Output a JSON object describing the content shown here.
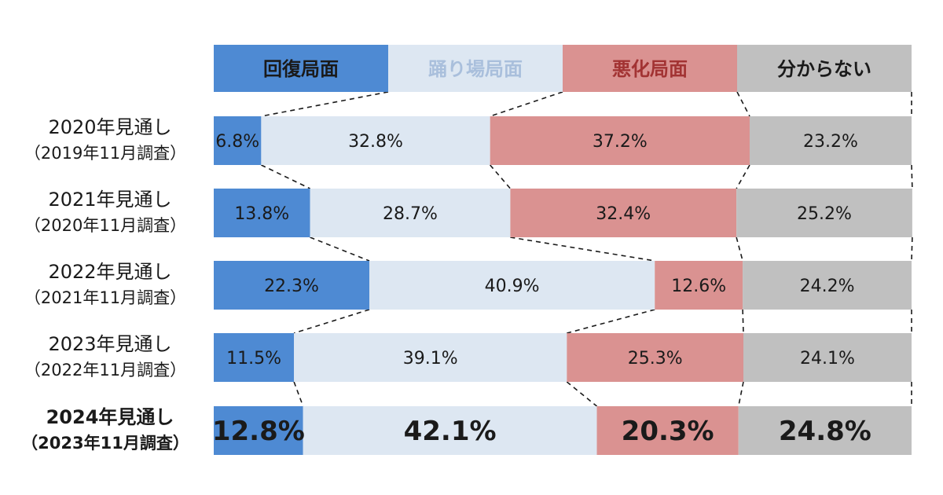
{
  "chart_data": {
    "type": "bar",
    "orientation": "horizontal",
    "stacked": true,
    "normalized": true,
    "legend_position": "top",
    "series": [
      {
        "name": "回復局面",
        "color": "#4e8ad3",
        "label_color": "#1a1a1a",
        "values": [
          6.8,
          13.8,
          22.3,
          11.5,
          12.8
        ]
      },
      {
        "name": "踊り場局面",
        "color": "#dde7f2",
        "label_color": "#a9bfdc",
        "values": [
          32.8,
          28.7,
          40.9,
          39.1,
          42.1
        ]
      },
      {
        "name": "悪化局面",
        "color": "#da9291",
        "label_color": "#a23333",
        "values": [
          37.2,
          32.4,
          12.6,
          25.3,
          20.3
        ]
      },
      {
        "name": "分からない",
        "color": "#c0c0c0",
        "label_color": "#1a1a1a",
        "values": [
          23.2,
          25.2,
          24.2,
          24.1,
          24.8
        ]
      }
    ],
    "categories": [
      {
        "line1": "2020年見通し",
        "line2": "（2019年11月調査）",
        "highlight": false
      },
      {
        "line1": "2021年見通し",
        "line2": "（2020年11月調査）",
        "highlight": false
      },
      {
        "line1": "2022年見通し",
        "line2": "（2021年11月調査）",
        "highlight": false
      },
      {
        "line1": "2023年見通し",
        "line2": "（2022年11月調査）",
        "highlight": false
      },
      {
        "line1": "2024年見通し",
        "line2": "（2023年11月調査）",
        "highlight": true
      }
    ],
    "value_labels": [
      [
        "6.8%",
        "32.8%",
        "37.2%",
        "23.2%"
      ],
      [
        "13.8%",
        "28.7%",
        "32.4%",
        "25.2%"
      ],
      [
        "22.3%",
        "40.9%",
        "12.6%",
        "24.2%"
      ],
      [
        "11.5%",
        "39.1%",
        "25.3%",
        "24.1%"
      ],
      [
        "12.8%",
        "42.1%",
        "20.3%",
        "24.8%"
      ]
    ],
    "connector_lines": "dashed"
  }
}
